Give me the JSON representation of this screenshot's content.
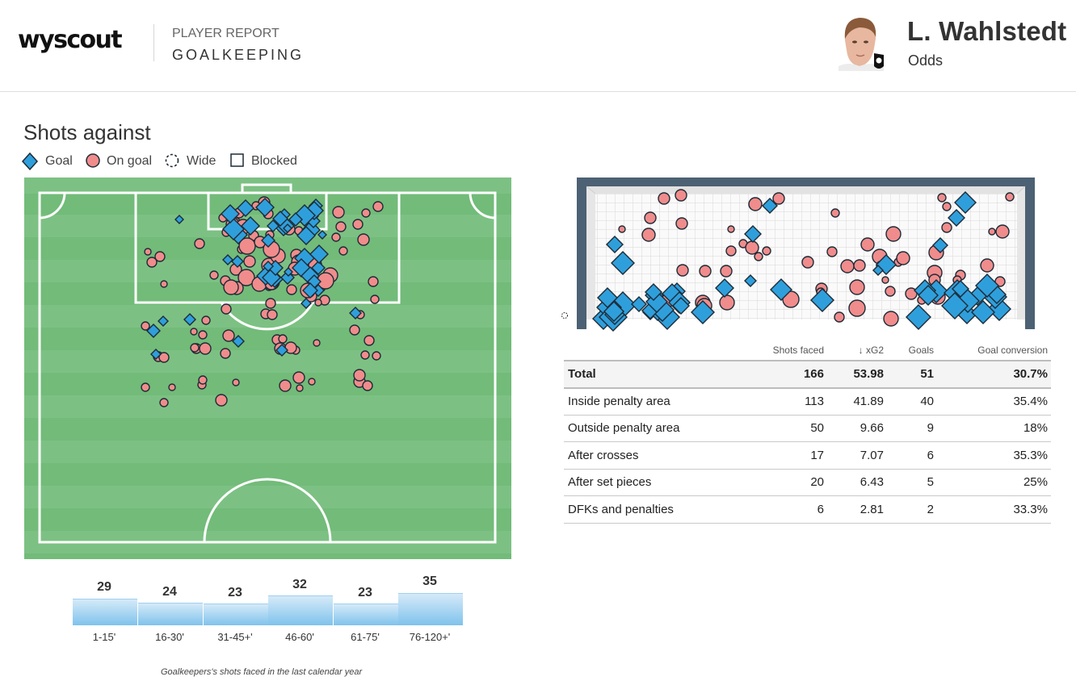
{
  "header": {
    "logo": "wyscout",
    "report_label": "PLAYER REPORT",
    "report_title": "GOALKEEPING",
    "player_name": "L. Wahlstedt",
    "team": "Odds"
  },
  "section_title": "Shots against",
  "legend": [
    {
      "label": "Goal",
      "icon": "diamond-icon"
    },
    {
      "label": "On goal",
      "icon": "circle-icon"
    },
    {
      "label": "Wide",
      "icon": "dashed-circle-icon"
    },
    {
      "label": "Blocked",
      "icon": "square-icon"
    }
  ],
  "colors": {
    "goal": "#2f9fdc",
    "on_goal": "#f08c8c",
    "pitch": "#72bb79",
    "pitch_stripe": "#7cc183",
    "goal_frame": "#4c6173",
    "bar_top": "#d5eaf8",
    "bar_bottom": "#7fc3ec"
  },
  "periods": [
    {
      "label": "1-15'",
      "value": 29
    },
    {
      "label": "16-30'",
      "value": 24
    },
    {
      "label": "31-45+'",
      "value": 23
    },
    {
      "label": "46-60'",
      "value": 32
    },
    {
      "label": "61-75'",
      "value": 23
    },
    {
      "label": "76-120+'",
      "value": 35
    }
  ],
  "footnote": "Goalkeepers's shots faced in the last calendar year",
  "table": {
    "headers": [
      "",
      "Shots faced",
      "↓ xG2",
      "Goals",
      "Goal conversion"
    ],
    "rows": [
      {
        "name": "Total",
        "shots": "166",
        "xg": "53.98",
        "goals": "51",
        "conv": "30.7%"
      },
      {
        "name": "Inside penalty area",
        "shots": "113",
        "xg": "41.89",
        "goals": "40",
        "conv": "35.4%"
      },
      {
        "name": "Outside penalty area",
        "shots": "50",
        "xg": "9.66",
        "goals": "9",
        "conv": "18%"
      },
      {
        "name": "After crosses",
        "shots": "17",
        "xg": "7.07",
        "goals": "6",
        "conv": "35.3%"
      },
      {
        "name": "After set pieces",
        "shots": "20",
        "xg": "6.43",
        "goals": "5",
        "conv": "25%"
      },
      {
        "name": "DFKs and penalties",
        "shots": "6",
        "xg": "2.81",
        "goals": "2",
        "conv": "33.3%"
      }
    ]
  }
}
